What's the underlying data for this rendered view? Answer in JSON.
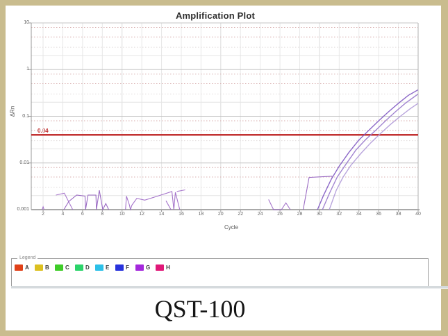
{
  "title": "Amplification Plot",
  "caption": "QST-100",
  "axes": {
    "ylabel": "ΔRn",
    "xlabel": "Cycle"
  },
  "threshold": {
    "label": "0.04",
    "value": 0.04,
    "color": "#c03030"
  },
  "legend": {
    "label": "Legend",
    "items": [
      {
        "label": "A",
        "color": "#e04018"
      },
      {
        "label": "B",
        "color": "#dcc020"
      },
      {
        "label": "C",
        "color": "#3ecc28"
      },
      {
        "label": "D",
        "color": "#2bd46a"
      },
      {
        "label": "E",
        "color": "#2cc0e8"
      },
      {
        "label": "F",
        "color": "#2832dc"
      },
      {
        "label": "G",
        "color": "#a428dc"
      },
      {
        "label": "H",
        "color": "#e01878"
      }
    ]
  },
  "chart_data": {
    "type": "line",
    "title": "Amplification Plot",
    "xlabel": "Cycle",
    "ylabel": "ΔRn",
    "x_scale": "linear",
    "y_scale": "log",
    "xlim": [
      0.8,
      40
    ],
    "ylim": [
      0.001,
      10
    ],
    "x_ticks": [
      2,
      4,
      6,
      8,
      10,
      12,
      14,
      16,
      18,
      20,
      22,
      24,
      26,
      28,
      30,
      32,
      34,
      36,
      38,
      40
    ],
    "y_ticks": [
      {
        "value": 10,
        "label": "10"
      },
      {
        "value": 1,
        "label": "1"
      },
      {
        "value": 0.1,
        "label": "0.1"
      },
      {
        "value": 0.01,
        "label": "0.01"
      },
      {
        "value": 0.001,
        "label": "0.001"
      }
    ],
    "grid": true,
    "legend_position": "bottom",
    "threshold": {
      "value": 0.04,
      "label": "0.04",
      "color": "#c23232"
    },
    "series": [
      {
        "name": "amplification-curve-1",
        "color": "#7e57c2",
        "width": 1.4,
        "points": [
          [
            29.8,
            0.001
          ],
          [
            30.4,
            0.002
          ],
          [
            31.2,
            0.0045
          ],
          [
            32,
            0.0085
          ],
          [
            33,
            0.017
          ],
          [
            34,
            0.031
          ],
          [
            35,
            0.05
          ],
          [
            36,
            0.08
          ],
          [
            37,
            0.125
          ],
          [
            38,
            0.19
          ],
          [
            39,
            0.28
          ],
          [
            40,
            0.37
          ]
        ]
      },
      {
        "name": "amplification-curve-2",
        "color": "#9878cc",
        "width": 1.4,
        "points": [
          [
            30.3,
            0.001
          ],
          [
            31.0,
            0.0022
          ],
          [
            31.8,
            0.005
          ],
          [
            32.7,
            0.0095
          ],
          [
            33.7,
            0.019
          ],
          [
            34.7,
            0.032
          ],
          [
            35.7,
            0.05
          ],
          [
            36.7,
            0.08
          ],
          [
            37.7,
            0.125
          ],
          [
            38.7,
            0.19
          ],
          [
            39.7,
            0.27
          ],
          [
            40,
            0.3
          ]
        ]
      },
      {
        "name": "amplification-curve-3",
        "color": "#b09ad8",
        "width": 1.4,
        "points": [
          [
            31.0,
            0.001
          ],
          [
            31.7,
            0.0026
          ],
          [
            32.4,
            0.005
          ],
          [
            33.2,
            0.009
          ],
          [
            34.2,
            0.016
          ],
          [
            35.2,
            0.027
          ],
          [
            36.2,
            0.043
          ],
          [
            37.2,
            0.067
          ],
          [
            38.2,
            0.1
          ],
          [
            39.2,
            0.145
          ],
          [
            40,
            0.19
          ]
        ]
      },
      {
        "name": "baseline-noise-1",
        "color": "#9a64c4",
        "width": 1.1,
        "points": [
          [
            1.9,
            0.001
          ],
          [
            2.0,
            0.00115
          ],
          [
            2.1,
            0.001
          ]
        ]
      },
      {
        "name": "baseline-noise-2",
        "color": "#a06cc8",
        "width": 1.1,
        "points": [
          [
            3.3,
            0.00205
          ],
          [
            4.15,
            0.00225
          ],
          [
            5.0,
            0.001
          ]
        ]
      },
      {
        "name": "baseline-noise-3",
        "color": "#8f5abc",
        "width": 1.1,
        "points": [
          [
            4.1,
            0.001
          ],
          [
            4.6,
            0.0015
          ],
          [
            5.4,
            0.00205
          ],
          [
            6.25,
            0.00195
          ],
          [
            6.3,
            0.001
          ],
          [
            6.55,
            0.00205
          ],
          [
            7.35,
            0.00205
          ],
          [
            7.4,
            0.001
          ],
          [
            7.7,
            0.0026
          ],
          [
            8.05,
            0.001
          ],
          [
            8.35,
            0.00135
          ],
          [
            8.65,
            0.001
          ]
        ]
      },
      {
        "name": "baseline-noise-4",
        "color": "#9a64c4",
        "width": 1.1,
        "points": [
          [
            10.35,
            0.001
          ],
          [
            10.45,
            0.00195
          ],
          [
            10.75,
            0.00125
          ],
          [
            10.85,
            0.001
          ],
          [
            11.0,
            0.00125
          ],
          [
            11.5,
            0.00175
          ],
          [
            12.3,
            0.0016
          ],
          [
            13.6,
            0.00195
          ],
          [
            15.05,
            0.00245
          ],
          [
            15.25,
            0.001
          ],
          [
            15.4,
            0.00235
          ],
          [
            15.85,
            0.001
          ]
        ]
      },
      {
        "name": "baseline-noise-5",
        "color": "#a06cc8",
        "width": 1.1,
        "points": [
          [
            15.55,
            0.00245
          ],
          [
            16.4,
            0.00265
          ]
        ]
      },
      {
        "name": "baseline-noise-6",
        "color": "#9a64c4",
        "width": 1.1,
        "points": [
          [
            14.45,
            0.00155
          ],
          [
            14.95,
            0.001
          ]
        ]
      },
      {
        "name": "baseline-noise-7",
        "color": "#9a64c4",
        "width": 1.1,
        "points": [
          [
            24.85,
            0.00165
          ],
          [
            25.35,
            0.001
          ],
          [
            26.15,
            0.001
          ],
          [
            26.6,
            0.0014
          ],
          [
            27.05,
            0.001
          ]
        ]
      },
      {
        "name": "baseline-noise-8",
        "color": "#8f5abc",
        "width": 1.1,
        "points": [
          [
            28.35,
            0.001
          ],
          [
            28.95,
            0.0049
          ],
          [
            31.3,
            0.0052
          ]
        ]
      }
    ]
  }
}
